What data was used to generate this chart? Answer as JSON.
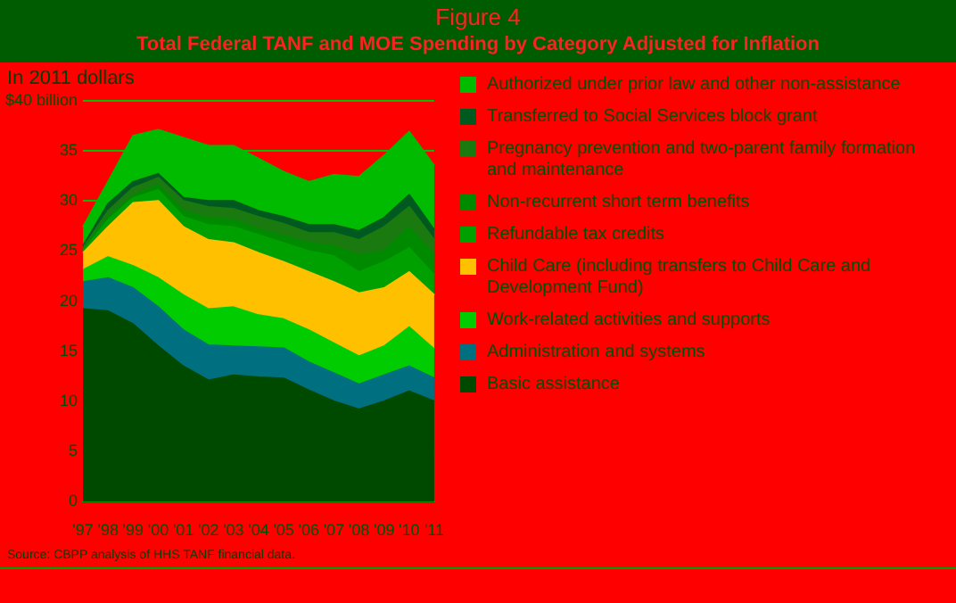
{
  "chart_data": {
    "type": "area",
    "title": "Figure 4",
    "subtitle": "Total Federal TANF and MOE Spending by Category Adjusted for Inflation",
    "ylabel": "In 2011 dollars",
    "categories": [
      "'97",
      "'98",
      "'99",
      "'00",
      "'01",
      "'02",
      "'03",
      "'04",
      "'05",
      "'06",
      "'07",
      "'08",
      "'09",
      "'10",
      "'11"
    ],
    "stacked": true,
    "ylim": [
      0,
      40
    ],
    "yticks": [
      0,
      5,
      10,
      15,
      20,
      25,
      30,
      35,
      {
        "value": 40,
        "label": "$40 billion"
      }
    ],
    "grid": "y",
    "legend": "right",
    "series": [
      {
        "name": "Basic assistance",
        "color": "#004a00",
        "values": [
          19.2,
          19.0,
          17.7,
          15.5,
          13.5,
          12.1,
          12.6,
          12.4,
          12.3,
          11.1,
          10.0,
          9.2,
          10.0,
          11.0,
          10.0
        ]
      },
      {
        "name": "Administration and systems",
        "color": "#007080",
        "values": [
          2.7,
          3.3,
          3.6,
          3.9,
          3.6,
          3.5,
          2.9,
          3.0,
          3.0,
          2.8,
          2.8,
          2.5,
          2.6,
          2.5,
          2.3
        ]
      },
      {
        "name": "Work-related activities and supports",
        "color": "#00cc00",
        "values": [
          1.2,
          2.1,
          2.2,
          2.9,
          3.5,
          3.6,
          3.9,
          3.2,
          2.9,
          3.2,
          3.0,
          2.8,
          2.9,
          3.9,
          2.9
        ]
      },
      {
        "name": "Child Care (including transfers to Child Care and Development Fund)",
        "color": "#ffc000",
        "values": [
          1.7,
          3.0,
          6.3,
          7.7,
          6.8,
          6.9,
          6.4,
          6.2,
          5.7,
          5.8,
          6.1,
          6.3,
          5.8,
          5.5,
          5.4
        ]
      },
      {
        "name": "Refundable tax credits",
        "color": "#00a000",
        "values": [
          0.2,
          0.7,
          0.5,
          1.1,
          1.0,
          1.5,
          1.6,
          1.8,
          1.9,
          2.1,
          2.6,
          2.1,
          2.6,
          2.4,
          2.0
        ]
      },
      {
        "name": "Non-recurrent short term benefits",
        "color": "#008a00",
        "values": [
          0.2,
          0.3,
          0.2,
          0.5,
          0.6,
          0.7,
          0.7,
          0.6,
          0.7,
          0.8,
          1.0,
          1.7,
          1.1,
          2.1,
          1.9
        ]
      },
      {
        "name": "Pregnancy prevention and two-parent family formation and maintenance",
        "color": "#1a7a10",
        "values": [
          0.1,
          0.6,
          0.8,
          0.7,
          1.0,
          1.1,
          1.1,
          1.2,
          1.2,
          1.0,
          1.3,
          1.5,
          2.4,
          2.0,
          1.6
        ]
      },
      {
        "name": "Transferred to Social Services block grant",
        "color": "#005a20",
        "values": [
          0.2,
          0.7,
          0.6,
          0.4,
          0.3,
          0.6,
          0.8,
          0.6,
          0.7,
          0.8,
          0.8,
          0.9,
          0.9,
          1.2,
          1.0
        ]
      },
      {
        "name": "Authorized under prior law and other non-assistance",
        "color": "#00bb00",
        "values": [
          1.9,
          2.2,
          4.6,
          4.4,
          6.0,
          5.5,
          5.5,
          5.2,
          4.5,
          4.3,
          5.0,
          5.4,
          6.2,
          6.3,
          6.4
        ]
      }
    ],
    "annotations": [
      "Source: CBPP analysis of HHS TANF financial data."
    ]
  }
}
